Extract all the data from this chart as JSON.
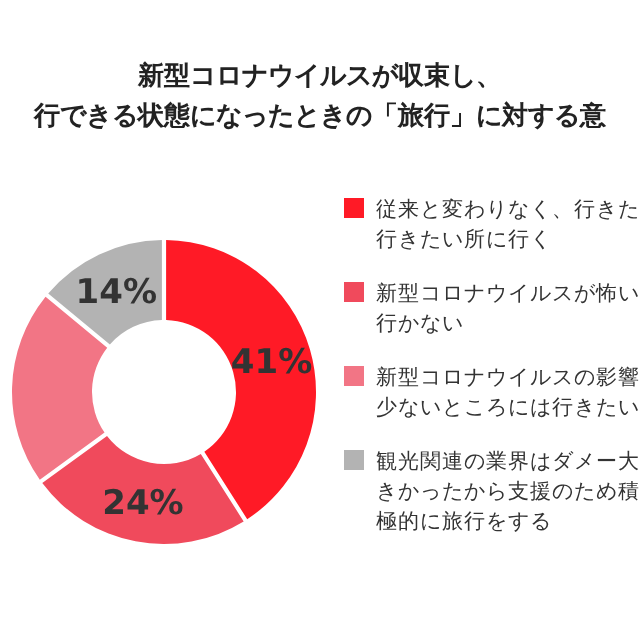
{
  "chart_data": {
    "type": "donut",
    "title": "新型コロナウイルスが収束し、行できる状態になったときの「旅行」に対する意",
    "categories": [
      "従来と変わりなく、行きた行きたい所に行く",
      "新型コロナウイルスが怖い行かない",
      "新型コロナウイルスの影響少ないところには行きたい",
      "観光関連の業界はダメー大きかったから支援のため積極的に旅行をする"
    ],
    "values": [
      41,
      24,
      21,
      14
    ],
    "value_labels": [
      "41%",
      "24%",
      null,
      "14%"
    ],
    "colors": [
      "#ff1a26",
      "#f04a5c",
      "#f27585",
      "#b3b3b3"
    ],
    "legend": "right"
  }
}
